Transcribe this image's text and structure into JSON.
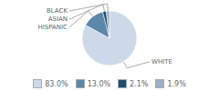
{
  "chart_data": {
    "type": "pie",
    "categories": [
      "WHITE",
      "HISPANIC",
      "ASIAN",
      "BLACK"
    ],
    "values": [
      83.0,
      13.0,
      2.1,
      1.9
    ],
    "colors": [
      "#ccd9e8",
      "#5b87ab",
      "#1e4d72",
      "#9ab0c4"
    ],
    "value_labels": [
      "83.0%",
      "13.0%",
      "2.1%",
      "1.9%"
    ],
    "legend": "bottom"
  }
}
